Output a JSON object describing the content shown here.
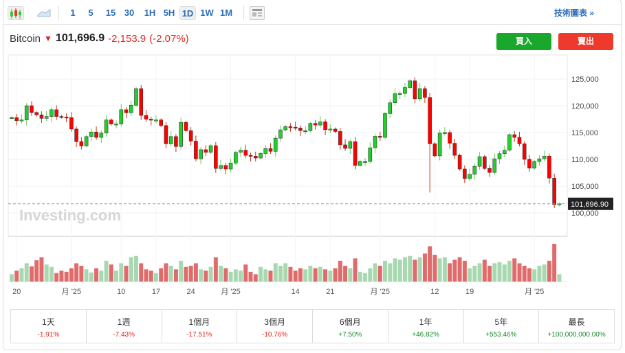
{
  "toolbar": {
    "chart_types": [
      {
        "icon": "candlestick-icon"
      },
      {
        "icon": "area-chart-icon"
      }
    ],
    "intervals": [
      "1",
      "5",
      "15",
      "30",
      "1H",
      "5H",
      "1D",
      "1W",
      "1M"
    ],
    "selected_interval": "1D",
    "layout_icon": "layout-icon",
    "technical_link": "技術圖表 »"
  },
  "instrument": {
    "name": "Bitcoin",
    "direction_icon": "arrow-down-icon",
    "price": "101,696.9",
    "change": "-2,153.9",
    "change_pct": "(-2.07%)"
  },
  "actions": {
    "buy": "買入",
    "sell": "賣出",
    "buy_color": "#1aa82c",
    "sell_color": "#ee3a2c"
  },
  "watermark": "Investing.com",
  "chart_data": {
    "type": "candlestick",
    "y_ticks": [
      125000,
      120000,
      115000,
      110000,
      105000,
      100000
    ],
    "y_tick_labels": [
      "125,000",
      "120,000",
      "115,000",
      "110,000",
      "105,000",
      "100,000"
    ],
    "current_price_label": "101,696.90",
    "current_price": 101696.9,
    "closes": [
      117800,
      117200,
      117350,
      120000,
      118750,
      118300,
      117650,
      118000,
      119250,
      118000,
      117900,
      117800,
      115650,
      113300,
      112500,
      114250,
      115100,
      114100,
      114900,
      117350,
      116600,
      116600,
      119250,
      118700,
      120100,
      123200,
      118200,
      117500,
      117350,
      117350,
      116300,
      112900,
      114250,
      112400,
      116900,
      115350,
      113400,
      110100,
      111800,
      111300,
      112550,
      108300,
      108850,
      108200,
      109300,
      111300,
      111700,
      110750,
      110600,
      110250,
      111100,
      112000,
      111500,
      113950,
      115500,
      116100,
      116000,
      115850,
      115350,
      115350,
      116700,
      116400,
      117000,
      115550,
      115650,
      115200,
      112700,
      112050,
      113300,
      108850,
      109600,
      109600,
      112150,
      114300,
      114100,
      118550,
      120550,
      122250,
      122300,
      123400,
      124650,
      121300,
      123200,
      121550,
      112900,
      110650,
      114900,
      115000,
      113000,
      110750,
      108200,
      106400,
      107200,
      108700,
      110500,
      108300,
      107550,
      110100,
      111050,
      111700,
      114600,
      114100,
      112900,
      110000,
      108350,
      109600,
      110100,
      110600,
      106500,
      101550,
      101697
    ],
    "volumes": [
      12,
      18,
      22,
      30,
      25,
      35,
      40,
      28,
      24,
      14,
      18,
      16,
      22,
      30,
      26,
      20,
      15,
      22,
      18,
      34,
      28,
      18,
      30,
      26,
      40,
      42,
      30,
      20,
      18,
      14,
      22,
      30,
      26,
      20,
      34,
      24,
      26,
      30,
      20,
      18,
      24,
      40,
      26,
      22,
      16,
      20,
      18,
      28,
      16,
      12,
      24,
      20,
      18,
      30,
      26,
      30,
      24,
      18,
      22,
      20,
      26,
      22,
      24,
      20,
      18,
      22,
      34,
      26,
      22,
      38,
      16,
      14,
      22,
      30,
      26,
      34,
      30,
      38,
      36,
      40,
      42,
      36,
      40,
      46,
      58,
      44,
      38,
      40,
      30,
      36,
      40,
      34,
      22,
      26,
      30,
      36,
      26,
      30,
      32,
      28,
      34,
      38,
      30,
      26,
      22,
      20,
      26,
      28,
      34,
      62,
      12
    ],
    "x_labels": [
      {
        "i": 1,
        "t": "20"
      },
      {
        "i": 12,
        "t": "月 '25"
      },
      {
        "i": 22,
        "t": "10"
      },
      {
        "i": 29,
        "t": "17"
      },
      {
        "i": 36,
        "t": "24"
      },
      {
        "i": 44,
        "t": "月 '25"
      },
      {
        "i": 57,
        "t": "14"
      },
      {
        "i": 64,
        "t": "21"
      },
      {
        "i": 74,
        "t": "月 '25"
      },
      {
        "i": 85,
        "t": "12"
      },
      {
        "i": 92,
        "t": "19"
      },
      {
        "i": 105,
        "t": "月 '25"
      }
    ],
    "up_color": "#22d02a",
    "down_color": "#ff0000",
    "ylim": [
      98000,
      130000
    ],
    "grid": true
  },
  "stats": [
    {
      "label": "1天",
      "value": "-1.91%",
      "sign": "neg"
    },
    {
      "label": "1週",
      "value": "-7.43%",
      "sign": "neg"
    },
    {
      "label": "1個月",
      "value": "-17.51%",
      "sign": "neg"
    },
    {
      "label": "3個月",
      "value": "-10.76%",
      "sign": "neg"
    },
    {
      "label": "6個月",
      "value": "+7.50%",
      "sign": "pos"
    },
    {
      "label": "1年",
      "value": "+46.82%",
      "sign": "pos"
    },
    {
      "label": "5年",
      "value": "+553.46%",
      "sign": "pos"
    },
    {
      "label": "最長",
      "value": "+100,000,000.00%",
      "sign": "pos"
    }
  ]
}
